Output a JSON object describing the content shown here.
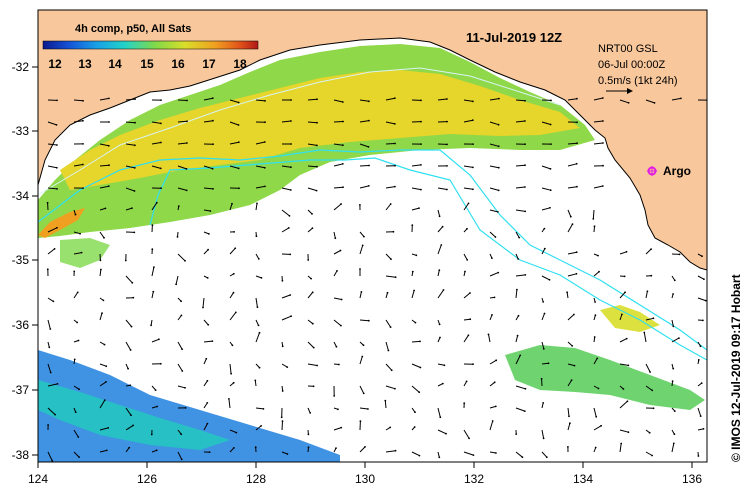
{
  "map": {
    "date_title": "11-Jul-2019 12Z",
    "info_lines": [
      "NRT00 GSL",
      "06-Jul 00:00Z",
      "0.5m/s (1kt 24h)"
    ],
    "colorbar": {
      "title": "4h comp, p50, All Sats",
      "ticks": [
        "12",
        "13",
        "14",
        "15",
        "16",
        "17",
        "18"
      ],
      "colors": [
        "#0a1a8c",
        "#1552d6",
        "#1aa0e6",
        "#22d3c8",
        "#7fd94a",
        "#d9de2a",
        "#f0a020",
        "#e0501a",
        "#b01818"
      ]
    },
    "argo_label": "Argo",
    "credit": "© IMOS 12-Jul-2019 09:17 Hobart",
    "lon_ticks": [
      "124",
      "126",
      "128",
      "130",
      "132",
      "134",
      "136"
    ],
    "lat_ticks": [
      "-32",
      "-33",
      "-34",
      "-35",
      "-36",
      "-37",
      "-38"
    ],
    "colors": {
      "land": "#f8c79b",
      "argo": "#e21ce2",
      "contour": "#30e0f0",
      "frame": "#000000"
    }
  }
}
